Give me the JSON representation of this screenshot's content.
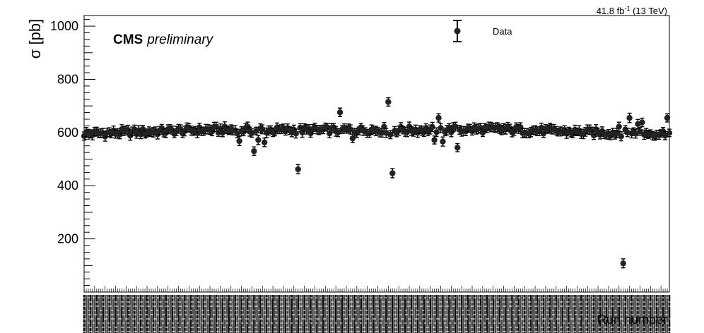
{
  "header": {
    "lumi_value": "41.8 fb",
    "lumi_exp": "-1",
    "energy": " (13 TeV)"
  },
  "label": {
    "experiment": "CMS",
    "status": "preliminary"
  },
  "chart_data": {
    "type": "scatter",
    "title": "",
    "xlabel": "Run number",
    "ylabel": "σ [pb]",
    "ylim": [
      0,
      1040
    ],
    "yticks": [
      200,
      400,
      600,
      800,
      1000
    ],
    "legend": {
      "position": "top-right",
      "entries": [
        "Data"
      ]
    },
    "n_points": 280,
    "series": [
      {
        "name": "Data",
        "marker": "filled-circle-with-errorbars",
        "baseline_pb": 605,
        "typical_error_pb": 14,
        "baseline_profile": [
          [
            0,
            595
          ],
          [
            60,
            610
          ],
          [
            100,
            608
          ],
          [
            200,
            612
          ],
          [
            240,
            600
          ],
          [
            300,
            595
          ],
          [
            330,
            588
          ],
          [
            350,
            578
          ],
          [
            380,
            580
          ],
          [
            400,
            585
          ],
          [
            422,
            595
          ]
        ],
        "outliers": [
          {
            "x": 112,
            "y": 568
          },
          {
            "x": 122,
            "y": 530
          },
          {
            "x": 126,
            "y": 572
          },
          {
            "x": 130,
            "y": 563
          },
          {
            "x": 155,
            "y": 462
          },
          {
            "x": 184,
            "y": 676
          },
          {
            "x": 193,
            "y": 578
          },
          {
            "x": 220,
            "y": 715
          },
          {
            "x": 221,
            "y": 592
          },
          {
            "x": 222,
            "y": 447
          },
          {
            "x": 252,
            "y": 572
          },
          {
            "x": 256,
            "y": 655
          },
          {
            "x": 259,
            "y": 566
          },
          {
            "x": 269,
            "y": 543
          },
          {
            "x": 385,
            "y": 622
          },
          {
            "x": 388,
            "y": 108
          },
          {
            "x": 393,
            "y": 655
          },
          {
            "x": 400,
            "y": 632
          },
          {
            "x": 403,
            "y": 638
          },
          {
            "x": 420,
            "y": 655
          }
        ]
      }
    ]
  }
}
